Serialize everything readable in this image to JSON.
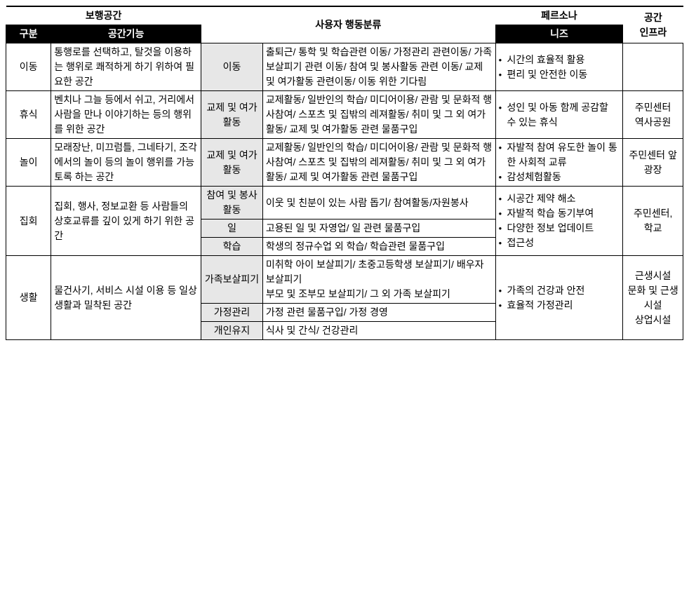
{
  "headers": {
    "group1": "보행공간",
    "group2": "사용자 행동분류",
    "group3": "페르소나",
    "group4": "공간\n인프라",
    "sub_gubun": "구분",
    "sub_func": "공간기능",
    "sub_needs": "니즈"
  },
  "rows": {
    "move": {
      "gubun": "이동",
      "func": "통행로를 선택하고, 탈것을 이용하는 행위로 쾌적하게 하기 위하여 필요한 공간",
      "behav_cat": "이동",
      "behav_detail": "출퇴근/ 통학 및 학습관련 이동/ 가정관리 관련이동/ 가족보살피기 관련 이동/ 참여 및 봉사활동 관련 이동/ 교제 및 여가활동 관련이동/ 이동 위한 기다림",
      "needs": [
        "시간의 효율적 활용",
        "편리 및 안전한 이동"
      ],
      "infra": ""
    },
    "rest": {
      "gubun": "휴식",
      "func": "벤치나 그늘 등에서 쉬고, 거리에서 사람을 만나 이야기하는 등의 행위를 위한 공간",
      "behav_cat": "교제 및 여가활동",
      "behav_detail": "교제활동/ 일반인의 학습/ 미디어이용/ 관람 및 문화적 행사참여/ 스포츠 및 집밖의 레져활동/ 취미 및 그 외 여가활동/ 교제 및 여가활동 관련 물품구입",
      "needs": [
        "성인 및 아동 함께 공감할 수 있는 휴식"
      ],
      "infra": "주민센터\n역사공원"
    },
    "play": {
      "gubun": "놀이",
      "func": "모래장난, 미끄럼틀, 그네타기, 조각에서의 놀이 등의 놀이 행위를 가능토록 하는 공간",
      "behav_cat": "교제 및 여가활동",
      "behav_detail": "교제활동/ 일반인의 학습/ 미디어이용/ 관람 및 문화적 행사참여/ 스포츠 및 집밖의 레져활동/ 취미 및 그 외 여가활동/ 교제 및 여가활동 관련 물품구입",
      "needs": [
        "자발적 참여 유도한 놀이 통한 사회적 교류",
        "감성체험활동"
      ],
      "infra": "주민센터 앞\n광장"
    },
    "assembly": {
      "gubun": "집회",
      "func": "집회, 행사, 정보교환 등 사람들의 상호교류를 깊이 있게 하기 위한 공간",
      "sub1_cat": "참여 및 봉사활동",
      "sub1_detail": "이웃 및 친분이 있는 사람 돕기/ 참여활동/자원봉사",
      "sub2_cat": "일",
      "sub2_detail": "고용된 일 및 자영업/ 일 관련 물품구입",
      "sub3_cat": "학습",
      "sub3_detail": "학생의 정규수업 외 학습/ 학습관련 물품구입",
      "needs": [
        "시공간 제약 해소",
        "자발적 학습 동기부여",
        "다양한 정보 업데이트",
        "접근성"
      ],
      "infra": "주민센터,\n학교"
    },
    "life": {
      "gubun": "생활",
      "func": "물건사기, 서비스 시설 이용 등 일상생활과 밀착된 공간",
      "sub1_cat": "가족보살피기",
      "sub1_detail": "미취학 아이 보살피기/ 초중고등학생 보살피기/ 배우자 보살피기\n부모 및 조부모 보살피기/ 그 외 가족 보살피기",
      "sub2_cat": "가정관리",
      "sub2_detail": "가정 관련 물품구입/ 가정 경영",
      "sub3_cat": "개인유지",
      "sub3_detail": "식사 및 간식/ 건강관리",
      "needs": [
        "가족의 건강과 안전",
        "효율적 가정관리"
      ],
      "infra": "근생시설\n문화 및 근생시설\n상업시설"
    }
  }
}
